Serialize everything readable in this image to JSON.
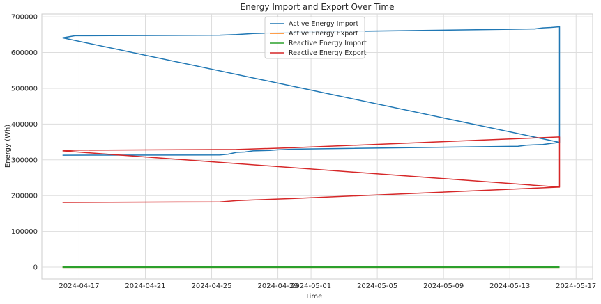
{
  "chart_data": {
    "type": "line",
    "title": "Energy Import and Export Over Time",
    "xlabel": "Time",
    "ylabel": "Energy (Wh)",
    "x_ticks": [
      "2024-04-17",
      "2024-04-21",
      "2024-04-25",
      "2024-04-29",
      "2024-05-01",
      "2024-05-05",
      "2024-05-09",
      "2024-05-13",
      "2024-05-17"
    ],
    "y_ticks": [
      0,
      100000,
      200000,
      300000,
      400000,
      500000,
      600000,
      700000
    ],
    "xlim": [
      "2024-04-14T18:00",
      "2024-05-18T00:00"
    ],
    "ylim": [
      -33000,
      708000
    ],
    "grid": true,
    "legend_position": "top-center",
    "series": [
      {
        "name": "Active Energy Import",
        "color": "#1f77b4",
        "points": [
          [
            "2024-04-16T00:00",
            641000
          ],
          [
            "2024-04-16T18:00",
            647000
          ],
          [
            "2024-04-25T12:00",
            648500
          ],
          [
            "2024-04-26T12:00",
            650000
          ],
          [
            "2024-04-27T12:00",
            653000
          ],
          [
            "2024-04-29T00:00",
            655000
          ],
          [
            "2024-04-30T00:00",
            657000
          ],
          [
            "2024-05-13T00:00",
            665000
          ],
          [
            "2024-05-14T12:00",
            666000
          ],
          [
            "2024-05-15T00:00",
            669000
          ],
          [
            "2024-05-15T12:00",
            670000
          ],
          [
            "2024-05-16T00:00",
            672000
          ],
          [
            "2024-05-16T00:00",
            349000
          ],
          [
            "2024-04-16T00:00",
            641000
          ]
        ],
        "lower_points": [
          [
            "2024-04-16T00:00",
            313000
          ],
          [
            "2024-04-25T12:00",
            313500
          ],
          [
            "2024-04-26T00:00",
            316000
          ],
          [
            "2024-04-26T12:00",
            321000
          ],
          [
            "2024-04-27T00:00",
            322000
          ],
          [
            "2024-04-27T12:00",
            325000
          ],
          [
            "2024-04-28T12:00",
            326500
          ],
          [
            "2024-04-29T00:00",
            328000
          ],
          [
            "2024-04-30T00:00",
            330000
          ],
          [
            "2024-05-13T12:00",
            338000
          ],
          [
            "2024-05-14T00:00",
            341000
          ],
          [
            "2024-05-15T00:00",
            343000
          ],
          [
            "2024-05-15T12:00",
            346000
          ],
          [
            "2024-05-16T00:00",
            348500
          ]
        ]
      },
      {
        "name": "Active Energy Export",
        "color": "#ff7f0e",
        "points": [
          [
            "2024-04-16T00:00",
            0
          ],
          [
            "2024-05-16T00:00",
            0
          ]
        ]
      },
      {
        "name": "Reactive Energy Import",
        "color": "#2ca02c",
        "points": [
          [
            "2024-04-16T00:00",
            0
          ],
          [
            "2024-05-16T00:00",
            0
          ]
        ]
      },
      {
        "name": "Reactive Energy Export",
        "color": "#d62728",
        "points": [
          [
            "2024-04-16T00:00",
            325000
          ],
          [
            "2024-04-16T18:00",
            327000
          ],
          [
            "2024-04-26T12:00",
            329000
          ],
          [
            "2024-04-30T00:00",
            334000
          ],
          [
            "2024-05-16T00:00",
            364000
          ],
          [
            "2024-05-16T00:00",
            224000
          ],
          [
            "2024-04-16T00:00",
            325000
          ]
        ],
        "lower_points": [
          [
            "2024-04-16T00:00",
            181000
          ],
          [
            "2024-04-25T12:00",
            182500
          ],
          [
            "2024-04-26T12:00",
            186000
          ],
          [
            "2024-04-27T12:00",
            188000
          ],
          [
            "2024-04-30T00:00",
            192000
          ],
          [
            "2024-05-16T00:00",
            224000
          ]
        ]
      }
    ]
  }
}
